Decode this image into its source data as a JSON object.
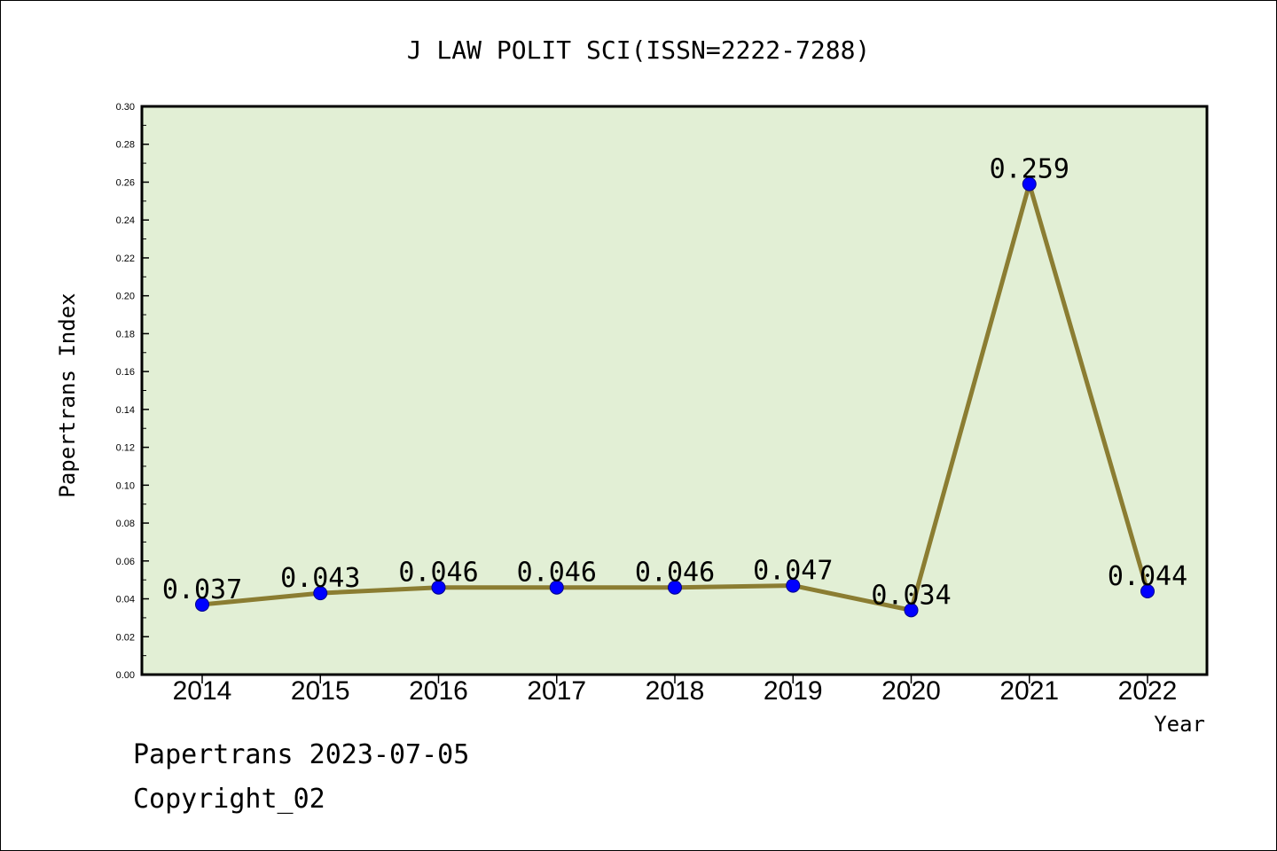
{
  "chart_data": {
    "type": "line",
    "title": "J LAW POLIT SCI(ISSN=2222-7288)",
    "xlabel": "Year",
    "ylabel": "Papertrans Index",
    "categories": [
      "2014",
      "2015",
      "2016",
      "2017",
      "2018",
      "2019",
      "2020",
      "2021",
      "2022"
    ],
    "values": [
      0.037,
      0.043,
      0.046,
      0.046,
      0.046,
      0.047,
      0.034,
      0.259,
      0.044
    ],
    "data_labels": [
      "0.037",
      "0.043",
      "0.046",
      "0.046",
      "0.046",
      "0.047",
      "0.034",
      "0.259",
      "0.044"
    ],
    "ylim": [
      0,
      0.3
    ],
    "yticks": [
      "0.00",
      "0.02",
      "0.04",
      "0.06",
      "0.08",
      "0.10",
      "0.12",
      "0.14",
      "0.16",
      "0.18",
      "0.20",
      "0.22",
      "0.24",
      "0.26",
      "0.28",
      "0.30"
    ],
    "grid": false,
    "colors": {
      "plot_background": "#e2efd5",
      "line": "#8b7d32",
      "marker": "#0000ff"
    }
  },
  "footer": {
    "date_line": "Papertrans 2023-07-05",
    "copyright": "Copyright_02"
  }
}
